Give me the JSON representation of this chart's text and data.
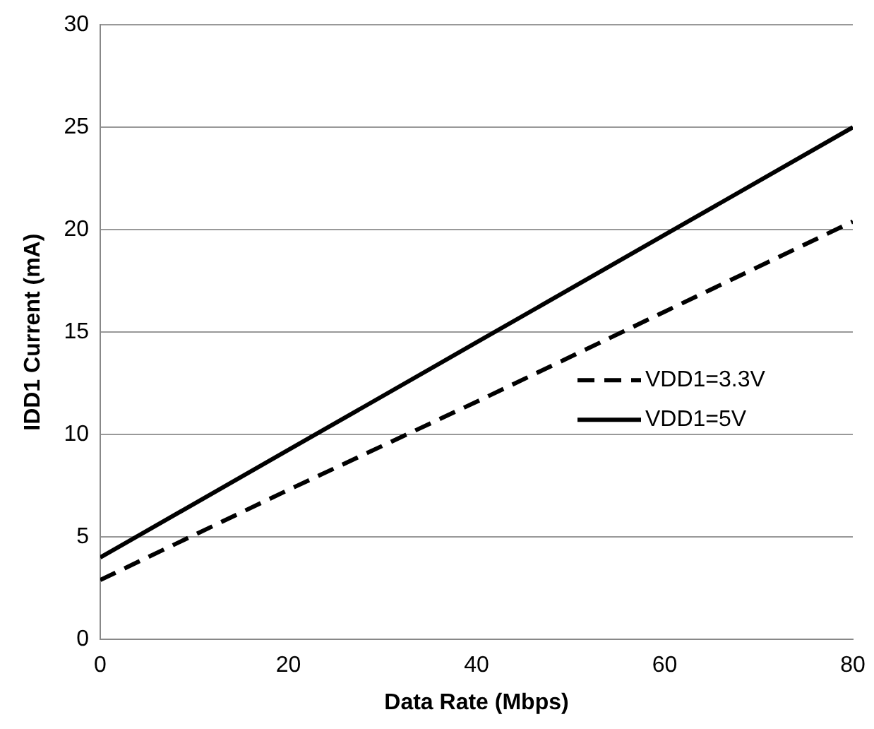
{
  "chart_data": {
    "type": "line",
    "xlabel": "Data Rate (Mbps)",
    "ylabel": "IDD1 Current (mA)",
    "x": [
      0,
      20,
      40,
      60,
      80
    ],
    "series": [
      {
        "name": "VDD1=3.3V",
        "color": "#000000",
        "line_style": "dashed",
        "values": [
          2.9,
          7.3,
          11.6,
          16,
          20.4
        ]
      },
      {
        "name": "VDD1=5V",
        "color": "#000000",
        "line_style": "solid",
        "values": [
          4,
          9.25,
          14.5,
          19.75,
          25
        ]
      }
    ],
    "xlim": [
      0,
      80
    ],
    "xticks": [
      0,
      20,
      40,
      60,
      80
    ],
    "ylim": [
      0,
      30
    ],
    "yticks": [
      0,
      5,
      10,
      15,
      20,
      25,
      30
    ],
    "grid": "y",
    "legend": "right",
    "marker": "none"
  }
}
